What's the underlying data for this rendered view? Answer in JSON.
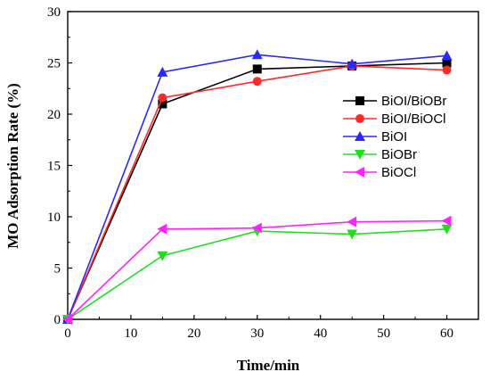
{
  "chart_data": {
    "type": "line",
    "title": "",
    "xlabel": "Time/min",
    "ylabel": "MO Adsorption Rate (%)",
    "xlim": [
      0,
      65
    ],
    "ylim": [
      0,
      30
    ],
    "xticks": [
      0,
      10,
      20,
      30,
      40,
      50,
      60
    ],
    "yticks": [
      0,
      5,
      10,
      15,
      20,
      25,
      30
    ],
    "grid": false,
    "legend_position": "right-middle",
    "x": [
      0,
      15,
      30,
      45,
      60
    ],
    "series": [
      {
        "name": "BiOI/BiOBr",
        "values": [
          0,
          21.0,
          24.4,
          24.7,
          25.0
        ],
        "color": "#000000",
        "marker": "square"
      },
      {
        "name": "BiOI/BiOCl",
        "values": [
          0,
          21.6,
          23.2,
          24.7,
          24.3
        ],
        "color": "#ff2a2a",
        "marker": "circle"
      },
      {
        "name": "BiOI",
        "values": [
          0,
          24.1,
          25.8,
          24.9,
          25.7
        ],
        "color": "#2a2aff",
        "marker": "triangle-up"
      },
      {
        "name": "BiOBr",
        "values": [
          0,
          6.2,
          8.6,
          8.3,
          8.8
        ],
        "color": "#22dd22",
        "marker": "triangle-down"
      },
      {
        "name": "BiOCl",
        "values": [
          0,
          8.8,
          8.9,
          9.5,
          9.6
        ],
        "color": "#ff22ff",
        "marker": "triangle-left"
      }
    ]
  }
}
